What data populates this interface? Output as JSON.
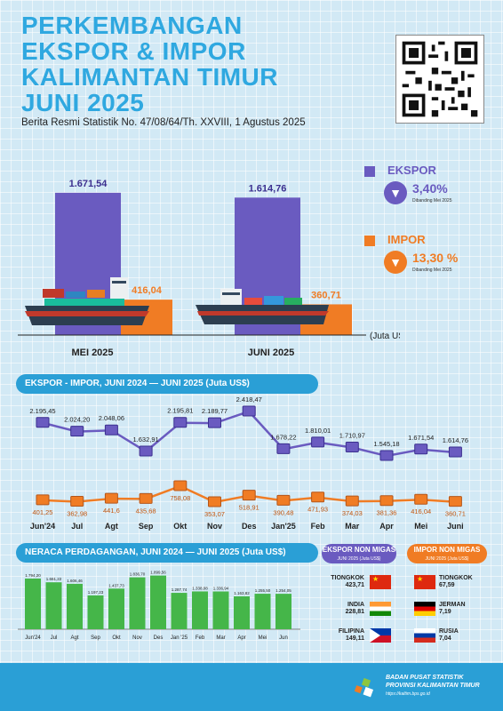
{
  "header": {
    "title_line1": "PERKEMBANGAN",
    "title_line2": "EKSPOR & IMPOR",
    "title_line3": "KALIMANTAN TIMUR",
    "title_line4": "JUNI 2025",
    "subtitle": "Berita Resmi Statistik No. 47/08/64/Th. XXVIII, 1 Agustus 2025"
  },
  "colors": {
    "ekspor": "#6a5bc0",
    "impor": "#f07c24",
    "neraca": "#45b649",
    "accent": "#2a9fd6"
  },
  "kpi": {
    "ekspor": {
      "label": "EKSPOR",
      "change": "3,40%",
      "note": "Dibanding Mei 2025",
      "icon": "down-arrow-icon"
    },
    "impor": {
      "label": "IMPOR",
      "change": "13,30 %",
      "note": "Dibanding Mei 2025",
      "icon": "down-arrow-icon"
    }
  },
  "sections": {
    "trend_title": "EKSPOR - IMPOR, JUNI 2024 — JUNI 2025 (Juta US$)",
    "neraca_title": "NERACA PERDAGANGAN, JUNI 2024 — JUNI 2025 (Juta US$)"
  },
  "chart_data": [
    {
      "type": "bar",
      "unit_label": "(Juta US$)",
      "categories": [
        "MEI 2025",
        "JUNI 2025"
      ],
      "series": [
        {
          "values": [
            1671.54,
            1614.76
          ],
          "labels": [
            "1.671,54",
            "1.614,76"
          ]
        },
        {
          "values": [
            416.04,
            360.71
          ],
          "labels": [
            "416,04",
            "360,71"
          ]
        }
      ]
    },
    {
      "type": "line",
      "categories": [
        "Jun'24",
        "Jul",
        "Agt",
        "Sep",
        "Okt",
        "Nov",
        "Des",
        "Jan'25",
        "Feb",
        "Mar",
        "Apr",
        "Mei",
        "Juni"
      ],
      "series": [
        {
          "values": [
            2195.45,
            2024.2,
            2048.06,
            1632.91,
            2195.81,
            2189.77,
            2418.47,
            1678.22,
            1810.01,
            1710.97,
            1545.18,
            1671.54,
            1614.76
          ],
          "labels": [
            "2.195,45",
            "2.024,20",
            "2.048,06",
            "1.632,91",
            "2.195,81",
            "2.189,77",
            "2.418,47",
            "1.678,22",
            "1.810,01",
            "1.710,97",
            "1.545,18",
            "1.671,54",
            "1.614,76"
          ]
        },
        {
          "values": [
            401.25,
            362.98,
            441.6,
            435.68,
            758.08,
            353.07,
            518.91,
            390.48,
            471.93,
            374.03,
            381.36,
            416.04,
            360.71
          ],
          "labels": [
            "401,25",
            "362,98",
            "441,6",
            "435,68",
            "758,08",
            "353,07",
            "518,91",
            "390,48",
            "471,93",
            "374,03",
            "381,36",
            "416,04",
            "360,71"
          ]
        }
      ]
    },
    {
      "type": "bar",
      "categories": [
        "Jun'24",
        "Jul",
        "Agt",
        "Sep",
        "Okt",
        "Nov",
        "Des",
        "Jan '25",
        "Feb",
        "Mar",
        "Apr",
        "Mei",
        "Jun"
      ],
      "values": [
        1794.2,
        1661.22,
        1606.46,
        1197.23,
        1437.73,
        1836.7,
        1899.56,
        1287.74,
        1338.08,
        1336.94,
        1163.82,
        1255.5,
        1254.05
      ],
      "labels": [
        "1.794,20",
        "1.661,22",
        "1.606,46",
        "1.197,23",
        "1.437,73",
        "1.836,70",
        "1.899,56",
        "1.287,74",
        "1.338,08",
        "1.336,94",
        "1.163,82",
        "1.255,50",
        "1.254,05"
      ]
    }
  ],
  "countries": {
    "ekspor_title": "EKSPOR NON MIGAS",
    "ekspor_sub": "JUNI 2025 (Juta US$)",
    "impor_title": "IMPOR NON MIGAS",
    "impor_sub": "JUNI 2025 (Juta US$)",
    "ekspor": [
      {
        "name": "TIONGKOK",
        "value": "423,71",
        "icon": "china-flag-icon"
      },
      {
        "name": "INDIA",
        "value": "228,81",
        "icon": "india-flag-icon"
      },
      {
        "name": "FILIPINA",
        "value": "149,11",
        "icon": "philippines-flag-icon"
      }
    ],
    "impor": [
      {
        "name": "TIONGKOK",
        "value": "67,59",
        "icon": "china-flag-icon"
      },
      {
        "name": "JERMAN",
        "value": "7,19",
        "icon": "germany-flag-icon"
      },
      {
        "name": "RUSIA",
        "value": "7,04",
        "icon": "russia-flag-icon"
      }
    ]
  },
  "footer": {
    "line1": "BADAN PUSAT STATISTIK",
    "line2": "PROVINSI KALIMANTAN TIMUR",
    "url": "https://kaltim.bps.go.id"
  }
}
